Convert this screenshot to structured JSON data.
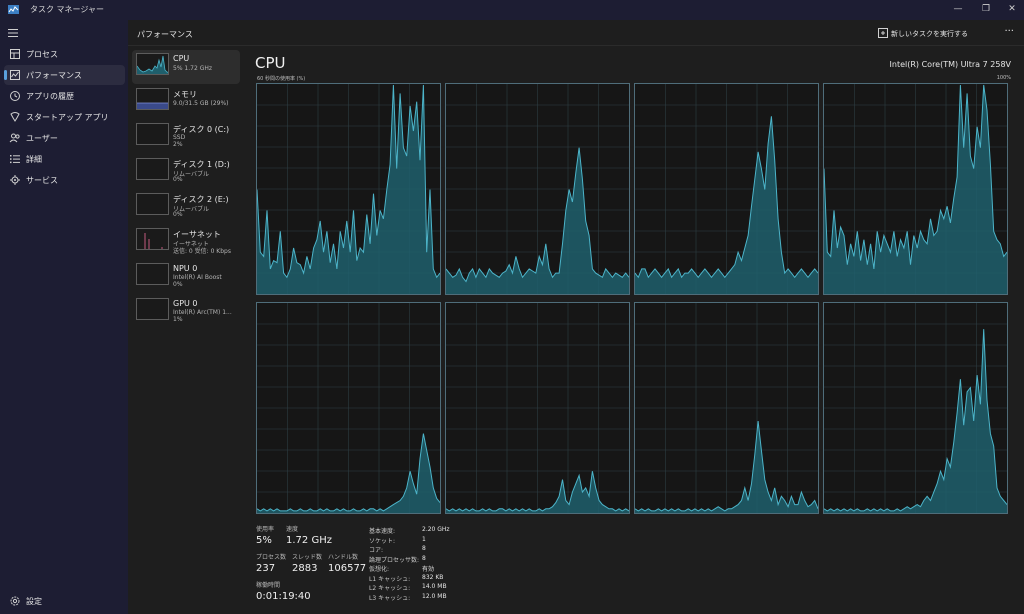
{
  "app": {
    "title": "タスク マネージャー"
  },
  "window_controls": {
    "minimize": "—",
    "restore": "❐",
    "close": "✕"
  },
  "nav": {
    "items": [
      {
        "label": "プロセス",
        "icon": "processes-icon",
        "active": false
      },
      {
        "label": "パフォーマンス",
        "icon": "performance-icon",
        "active": true
      },
      {
        "label": "アプリの履歴",
        "icon": "app-history-icon",
        "active": false
      },
      {
        "label": "スタートアップ アプリ",
        "icon": "startup-apps-icon",
        "active": false
      },
      {
        "label": "ユーザー",
        "icon": "users-icon",
        "active": false
      },
      {
        "label": "詳細",
        "icon": "details-icon",
        "active": false
      },
      {
        "label": "サービス",
        "icon": "services-icon",
        "active": false
      }
    ],
    "settings": {
      "label": "設定",
      "icon": "settings-icon"
    }
  },
  "header": {
    "title": "パフォーマンス",
    "run_task_label": "新しいタスクを実行する",
    "more": "···"
  },
  "devices": [
    {
      "name": "CPU",
      "sub1": "5%  1.72 GHz",
      "sub2": "",
      "selected": true
    },
    {
      "name": "メモリ",
      "sub1": "9.0/31.5 GB (29%)",
      "sub2": "",
      "selected": false
    },
    {
      "name": "ディスク 0 (C:)",
      "sub1": "SSD",
      "sub2": "2%",
      "selected": false
    },
    {
      "name": "ディスク 1 (D:)",
      "sub1": "リムーバブル",
      "sub2": "0%",
      "selected": false
    },
    {
      "name": "ディスク 2 (E:)",
      "sub1": "リムーバブル",
      "sub2": "0%",
      "selected": false
    },
    {
      "name": "イーサネット",
      "sub1": "イーサネット",
      "sub2": "送信: 0 受信: 0 Kbps",
      "selected": false
    },
    {
      "name": "NPU 0",
      "sub1": "Intel(R) AI Boost",
      "sub2": "0%",
      "selected": false
    },
    {
      "name": "GPU 0",
      "sub1": "Intel(R) Arc(TM) 1...",
      "sub2": "1%",
      "selected": false
    }
  ],
  "main": {
    "title": "CPU",
    "model": "Intel(R) Core(TM) Ultra 7 258V",
    "graph_caption": "60 秒間の使用率 (%)",
    "graph_max": "100%"
  },
  "chart_data": {
    "type": "area",
    "title": "60 秒間の使用率 (%)",
    "ylim": [
      0,
      100
    ],
    "grid": true,
    "series": [
      {
        "values": [
          50,
          20,
          18,
          40,
          12,
          16,
          15,
          30,
          10,
          8,
          12,
          22,
          15,
          14,
          10,
          18,
          12,
          22,
          26,
          35,
          20,
          30,
          15,
          24,
          12,
          30,
          22,
          35,
          20,
          40,
          16,
          22,
          20,
          38,
          24,
          48,
          28,
          40,
          36,
          50,
          62,
          100,
          60,
          96,
          70,
          66,
          90,
          78,
          92,
          64,
          100,
          20,
          50,
          12,
          8,
          10
        ]
      },
      {
        "values": [
          12,
          10,
          8,
          9,
          12,
          8,
          6,
          10,
          12,
          8,
          12,
          10,
          8,
          12,
          10,
          9,
          8,
          10,
          11,
          14,
          10,
          18,
          12,
          8,
          10,
          12,
          11,
          10,
          18,
          14,
          24,
          12,
          8,
          10,
          10,
          24,
          40,
          50,
          44,
          58,
          70,
          55,
          35,
          28,
          12,
          10,
          9,
          8,
          12,
          10,
          8,
          10,
          9,
          8,
          10,
          8
        ]
      },
      {
        "values": [
          10,
          8,
          12,
          12,
          8,
          10,
          12,
          10,
          8,
          10,
          12,
          8,
          10,
          12,
          8,
          10,
          10,
          12,
          10,
          8,
          10,
          12,
          10,
          8,
          10,
          12,
          10,
          8,
          10,
          12,
          14,
          20,
          16,
          22,
          28,
          42,
          55,
          68,
          60,
          50,
          72,
          85,
          64,
          36,
          20,
          10,
          12,
          10,
          8,
          10,
          12,
          10,
          8,
          10,
          12,
          10
        ]
      },
      {
        "values": [
          60,
          20,
          18,
          40,
          22,
          32,
          28,
          14,
          24,
          18,
          30,
          16,
          26,
          14,
          24,
          12,
          30,
          20,
          28,
          24,
          20,
          30,
          18,
          26,
          22,
          30,
          14,
          28,
          22,
          30,
          26,
          24,
          36,
          28,
          30,
          40,
          36,
          42,
          34,
          46,
          56,
          100,
          70,
          96,
          66,
          60,
          80,
          70,
          100,
          88,
          62,
          30,
          26,
          24,
          18,
          20
        ]
      },
      {
        "values": [
          2,
          1,
          2,
          1,
          2,
          1,
          2,
          1,
          1,
          1,
          2,
          1,
          1,
          2,
          1,
          1,
          2,
          1,
          1,
          2,
          1,
          2,
          1,
          1,
          2,
          1,
          2,
          1,
          1,
          2,
          1,
          1,
          2,
          1,
          2,
          2,
          1,
          2,
          1,
          2,
          3,
          4,
          5,
          6,
          8,
          12,
          20,
          14,
          9,
          26,
          38,
          30,
          22,
          12,
          7,
          5
        ]
      },
      {
        "values": [
          2,
          1,
          2,
          1,
          2,
          1,
          2,
          1,
          2,
          1,
          1,
          2,
          1,
          2,
          1,
          1,
          2,
          2,
          1,
          2,
          1,
          2,
          1,
          2,
          1,
          2,
          1,
          1,
          2,
          1,
          2,
          2,
          3,
          5,
          8,
          16,
          6,
          4,
          10,
          14,
          18,
          10,
          12,
          8,
          20,
          12,
          6,
          4,
          3,
          2,
          2,
          1,
          2,
          1,
          2,
          1
        ]
      },
      {
        "values": [
          2,
          1,
          2,
          1,
          2,
          1,
          1,
          2,
          1,
          2,
          1,
          2,
          1,
          2,
          1,
          1,
          2,
          1,
          2,
          1,
          2,
          1,
          2,
          1,
          2,
          3,
          2,
          1,
          2,
          2,
          3,
          4,
          6,
          12,
          6,
          14,
          28,
          44,
          30,
          16,
          10,
          6,
          12,
          4,
          8,
          6,
          3,
          8,
          4,
          4,
          10,
          6,
          3,
          4,
          6,
          2
        ]
      },
      {
        "values": [
          2,
          1,
          2,
          1,
          2,
          1,
          2,
          1,
          2,
          1,
          2,
          1,
          1,
          2,
          1,
          2,
          1,
          2,
          1,
          2,
          1,
          1,
          2,
          1,
          2,
          3,
          2,
          3,
          4,
          3,
          6,
          8,
          6,
          10,
          14,
          20,
          16,
          26,
          22,
          34,
          48,
          64,
          42,
          58,
          60,
          44,
          66,
          52,
          88,
          54,
          38,
          32,
          12,
          8,
          6,
          4
        ]
      }
    ]
  },
  "stats": {
    "usage_label": "使用率",
    "usage_value": "5%",
    "speed_label": "速度",
    "speed_value": "1.72 GHz",
    "processes_label": "プロセス数",
    "processes_value": "237",
    "threads_label": "スレッド数",
    "threads_value": "2883",
    "handles_label": "ハンドル数",
    "handles_value": "106577",
    "uptime_label": "稼働時間",
    "uptime_value": "0:01:19:40"
  },
  "details": [
    {
      "label": "基本速度:",
      "value": "2.20 GHz"
    },
    {
      "label": "ソケット:",
      "value": "1"
    },
    {
      "label": "コア:",
      "value": "8"
    },
    {
      "label": "論理プロセッサ数:",
      "value": "8"
    },
    {
      "label": "仮想化:",
      "value": "有効"
    },
    {
      "label": "L1 キャッシュ:",
      "value": "832 KB"
    },
    {
      "label": "L2 キャッシュ:",
      "value": "14.0 MB"
    },
    {
      "label": "L3 キャッシュ:",
      "value": "12.0 MB"
    }
  ],
  "colors": {
    "accent": "#4cb4c9",
    "fill": "#1f5f6c",
    "grid": "#2e3e44",
    "nav_indicator": "#5aa0dc"
  }
}
